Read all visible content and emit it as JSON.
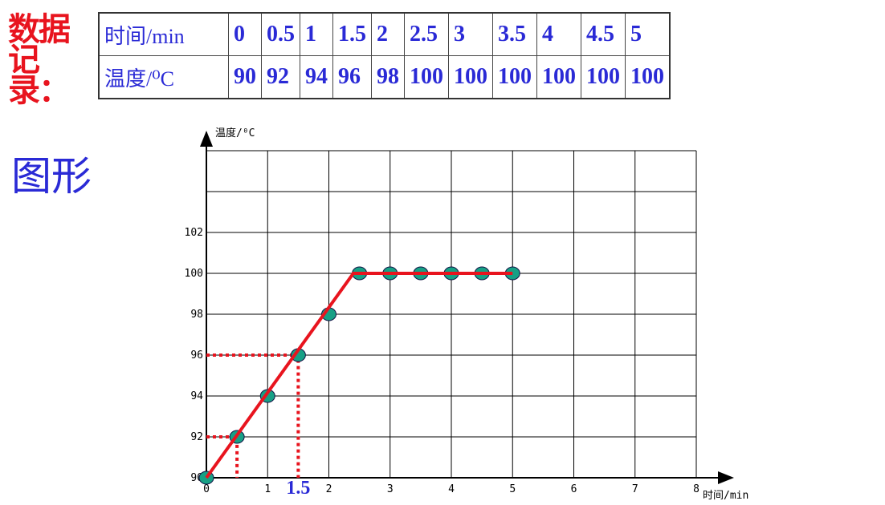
{
  "header": {
    "label": "数据记录：",
    "figure_label": "图形"
  },
  "table": {
    "rows": [
      [
        "时间/min",
        "0",
        "0.5",
        "1",
        "1.5",
        "2",
        "2.5",
        "3",
        "3.5",
        "4",
        "4.5",
        "5"
      ],
      [
        "温度/⁰C",
        "90",
        "92",
        "94",
        "96",
        "98",
        "100",
        "100",
        "100",
        "100",
        "100",
        "100"
      ]
    ]
  },
  "chart_data": {
    "type": "line",
    "x_label": "时间/min",
    "y_label": "温度/⁰C",
    "xlim": [
      0,
      8
    ],
    "xticks": [
      0,
      1,
      2,
      3,
      4,
      5,
      6,
      7,
      8
    ],
    "ylim": [
      90,
      106
    ],
    "yticks": [
      90,
      92,
      94,
      96,
      98,
      100,
      102
    ],
    "grid": true,
    "series": [
      {
        "color": "#17a085",
        "marker": true,
        "x": [
          0,
          0.5,
          1,
          1.5,
          2,
          2.5,
          3,
          3.5,
          4,
          4.5,
          5
        ],
        "values": [
          90,
          92,
          94,
          96,
          98,
          100,
          100,
          100,
          100,
          100,
          100
        ]
      },
      {
        "color": "#e8141e",
        "marker": false,
        "x": [
          0,
          2.4,
          5
        ],
        "values": [
          90,
          100,
          100
        ]
      }
    ],
    "guides": [
      {
        "x": 0.5,
        "y": 92,
        "color": "#e8141e"
      },
      {
        "x": 1.5,
        "y": 96,
        "color": "#e8141e",
        "label": "1.5"
      }
    ]
  }
}
